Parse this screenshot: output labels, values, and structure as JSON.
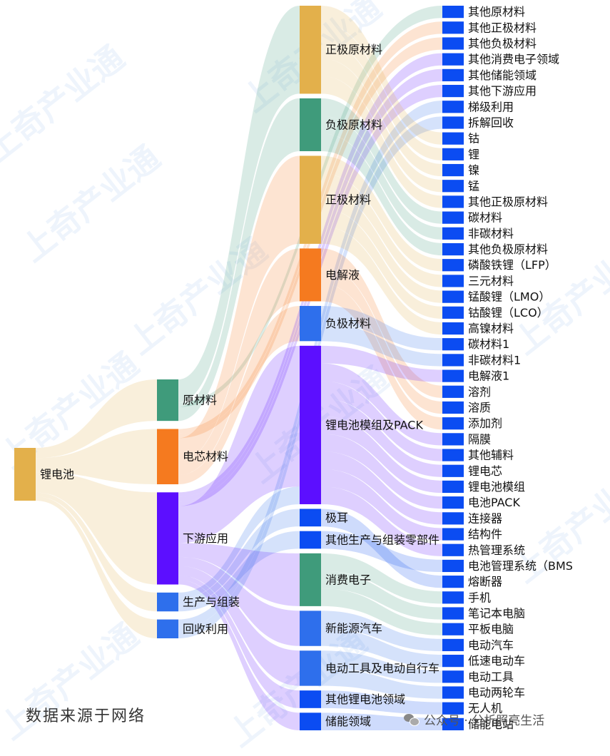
{
  "watermark": "上奇产业通",
  "source_note": "数据来源于网络",
  "wechat_account": "公众号 · 分析照亮生活",
  "colors": {
    "gold": "#e3b04b",
    "teal": "#3f9b7b",
    "orange": "#f57a1f",
    "violet": "#5c0fff",
    "blue": "#2e6fec",
    "bright_blue": "#0b4cf2"
  },
  "chart_data": {
    "type": "sankey",
    "nodes": [
      {
        "id": "锂电池",
        "color": "#e3b04b"
      },
      {
        "id": "原材料",
        "color": "#3f9b7b"
      },
      {
        "id": "电芯材料",
        "color": "#f57a1f"
      },
      {
        "id": "下游应用",
        "color": "#5c0fff"
      },
      {
        "id": "生产与组装",
        "color": "#2e6fec"
      },
      {
        "id": "回收利用",
        "color": "#2e6fec"
      },
      {
        "id": "正极原材料",
        "color": "#e3b04b"
      },
      {
        "id": "负极原材料",
        "color": "#3f9b7b"
      },
      {
        "id": "其他原材料",
        "color": "#0b4cf2"
      },
      {
        "id": "正极材料",
        "color": "#e3b04b"
      },
      {
        "id": "电解液",
        "color": "#f57a1f"
      },
      {
        "id": "负极材料",
        "color": "#2e6fec"
      },
      {
        "id": "锂电池模组及PACK",
        "color": "#5c0fff"
      },
      {
        "id": "其他正极材料",
        "color": "#0b4cf2"
      },
      {
        "id": "其他负极材料",
        "color": "#0b4cf2"
      },
      {
        "id": "极耳",
        "color": "#0b4cf2"
      },
      {
        "id": "其他生产与组装零部件",
        "color": "#0b4cf2"
      },
      {
        "id": "消费电子",
        "color": "#3f9b7b"
      },
      {
        "id": "其他消费电子领域",
        "color": "#0b4cf2"
      },
      {
        "id": "其他储能领域",
        "color": "#0b4cf2"
      },
      {
        "id": "其他下游应用",
        "color": "#0b4cf2"
      },
      {
        "id": "新能源汽车",
        "color": "#2e6fec"
      },
      {
        "id": "电动工具及电动自行车",
        "color": "#2e6fec"
      },
      {
        "id": "其他锂电池领域",
        "color": "#0b4cf2"
      },
      {
        "id": "储能领域",
        "color": "#0b4cf2"
      },
      {
        "id": "梯级利用",
        "color": "#0b4cf2"
      },
      {
        "id": "拆解回收",
        "color": "#0b4cf2"
      },
      {
        "id": "钴",
        "color": "#0b4cf2"
      },
      {
        "id": "锂",
        "color": "#0b4cf2"
      },
      {
        "id": "镍",
        "color": "#0b4cf2"
      },
      {
        "id": "锰",
        "color": "#0b4cf2"
      },
      {
        "id": "其他正极原材料",
        "color": "#0b4cf2"
      },
      {
        "id": "碳材料",
        "color": "#0b4cf2"
      },
      {
        "id": "非碳材料",
        "color": "#0b4cf2"
      },
      {
        "id": "其他负极原材料",
        "color": "#0b4cf2"
      },
      {
        "id": "磷酸铁锂（LFP）",
        "color": "#0b4cf2"
      },
      {
        "id": "三元材料",
        "color": "#0b4cf2"
      },
      {
        "id": "锰酸锂（LMO）",
        "color": "#0b4cf2"
      },
      {
        "id": "钴酸锂（LCO）",
        "color": "#0b4cf2"
      },
      {
        "id": "高镍材料",
        "color": "#0b4cf2"
      },
      {
        "id": "碳材料1",
        "color": "#0b4cf2"
      },
      {
        "id": "非碳材料1",
        "color": "#0b4cf2"
      },
      {
        "id": "电解液1",
        "color": "#0b4cf2"
      },
      {
        "id": "溶剂",
        "color": "#0b4cf2"
      },
      {
        "id": "溶质",
        "color": "#0b4cf2"
      },
      {
        "id": "添加剂",
        "color": "#0b4cf2"
      },
      {
        "id": "隔膜",
        "color": "#0b4cf2"
      },
      {
        "id": "其他辅料",
        "color": "#0b4cf2"
      },
      {
        "id": "锂电芯",
        "color": "#0b4cf2"
      },
      {
        "id": "锂电池模组",
        "color": "#0b4cf2"
      },
      {
        "id": "电池PACK",
        "color": "#0b4cf2"
      },
      {
        "id": "连接器",
        "color": "#0b4cf2"
      },
      {
        "id": "结构件",
        "color": "#0b4cf2"
      },
      {
        "id": "热管理系统",
        "color": "#0b4cf2"
      },
      {
        "id": "电池管理系统（BMS",
        "color": "#0b4cf2"
      },
      {
        "id": "熔断器",
        "color": "#0b4cf2"
      },
      {
        "id": "手机",
        "color": "#0b4cf2"
      },
      {
        "id": "笔记本电脑",
        "color": "#0b4cf2"
      },
      {
        "id": "平板电脑",
        "color": "#0b4cf2"
      },
      {
        "id": "电动汽车",
        "color": "#0b4cf2"
      },
      {
        "id": "低速电动车",
        "color": "#0b4cf2"
      },
      {
        "id": "电动工具",
        "color": "#0b4cf2"
      },
      {
        "id": "电动两轮车",
        "color": "#0b4cf2"
      },
      {
        "id": "无人机",
        "color": "#0b4cf2"
      },
      {
        "id": "储能电站",
        "color": "#0b4cf2"
      }
    ],
    "links": [
      {
        "source": "锂电池",
        "target": "原材料",
        "value": 5
      },
      {
        "source": "锂电池",
        "target": "电芯材料",
        "value": 7
      },
      {
        "source": "锂电池",
        "target": "下游应用",
        "value": 10
      },
      {
        "source": "锂电池",
        "target": "生产与组装",
        "value": 2
      },
      {
        "source": "锂电池",
        "target": "回收利用",
        "value": 2
      },
      {
        "source": "原材料",
        "target": "正极原材料",
        "value": 5
      },
      {
        "source": "原材料",
        "target": "负极原材料",
        "value": 3
      },
      {
        "source": "原材料",
        "target": "其他原材料",
        "value": 1
      },
      {
        "source": "电芯材料",
        "target": "正极材料",
        "value": 5
      },
      {
        "source": "电芯材料",
        "target": "电解液",
        "value": 3
      },
      {
        "source": "电芯材料",
        "target": "负极材料",
        "value": 2
      },
      {
        "source": "电芯材料",
        "target": "其他正极材料",
        "value": 1
      },
      {
        "source": "电芯材料",
        "target": "其他负极材料",
        "value": 1
      },
      {
        "source": "生产与组装",
        "target": "锂电池模组及PACK",
        "value": 1
      },
      {
        "source": "生产与组装",
        "target": "极耳",
        "value": 1
      },
      {
        "source": "生产与组装",
        "target": "其他生产与组装零部件",
        "value": 1
      },
      {
        "source": "下游应用",
        "target": "锂电池模组及PACK",
        "value": 8
      },
      {
        "source": "下游应用",
        "target": "消费电子",
        "value": 3
      },
      {
        "source": "下游应用",
        "target": "其他消费电子领域",
        "value": 1
      },
      {
        "source": "下游应用",
        "target": "其他储能领域",
        "value": 1
      },
      {
        "source": "下游应用",
        "target": "其他下游应用",
        "value": 1
      },
      {
        "source": "下游应用",
        "target": "新能源汽车",
        "value": 2
      },
      {
        "source": "下游应用",
        "target": "电动工具及电动自行车",
        "value": 2
      },
      {
        "source": "下游应用",
        "target": "其他锂电池领域",
        "value": 1
      },
      {
        "source": "下游应用",
        "target": "储能领域",
        "value": 1
      },
      {
        "source": "回收利用",
        "target": "梯级利用",
        "value": 1
      },
      {
        "source": "回收利用",
        "target": "拆解回收",
        "value": 1
      },
      {
        "source": "正极原材料",
        "target": "钴",
        "value": 1
      },
      {
        "source": "正极原材料",
        "target": "锂",
        "value": 1
      },
      {
        "source": "正极原材料",
        "target": "镍",
        "value": 1
      },
      {
        "source": "正极原材料",
        "target": "锰",
        "value": 1
      },
      {
        "source": "正极原材料",
        "target": "其他正极原材料",
        "value": 1
      },
      {
        "source": "负极原材料",
        "target": "碳材料",
        "value": 1
      },
      {
        "source": "负极原材料",
        "target": "非碳材料",
        "value": 1
      },
      {
        "source": "负极原材料",
        "target": "其他负极原材料",
        "value": 1
      },
      {
        "source": "正极材料",
        "target": "磷酸铁锂（LFP）",
        "value": 1
      },
      {
        "source": "正极材料",
        "target": "三元材料",
        "value": 1
      },
      {
        "source": "正极材料",
        "target": "锰酸锂（LMO）",
        "value": 1
      },
      {
        "source": "正极材料",
        "target": "钴酸锂（LCO）",
        "value": 1
      },
      {
        "source": "正极材料",
        "target": "高镍材料",
        "value": 1
      },
      {
        "source": "电解液",
        "target": "溶剂",
        "value": 1
      },
      {
        "source": "电解液",
        "target": "溶质",
        "value": 1
      },
      {
        "source": "电解液",
        "target": "添加剂",
        "value": 1
      },
      {
        "source": "负极材料",
        "target": "碳材料1",
        "value": 1
      },
      {
        "source": "负极材料",
        "target": "非碳材料1",
        "value": 1
      },
      {
        "source": "锂电池模组及PACK",
        "target": "电解液1",
        "value": 1
      },
      {
        "source": "锂电池模组及PACK",
        "target": "隔膜",
        "value": 1
      },
      {
        "source": "锂电池模组及PACK",
        "target": "其他辅料",
        "value": 1
      },
      {
        "source": "锂电池模组及PACK",
        "target": "锂电芯",
        "value": 1
      },
      {
        "source": "锂电池模组及PACK",
        "target": "锂电池模组",
        "value": 1
      },
      {
        "source": "锂电池模组及PACK",
        "target": "电池PACK",
        "value": 1
      },
      {
        "source": "锂电池模组及PACK",
        "target": "连接器",
        "value": 1
      },
      {
        "source": "锂电池模组及PACK",
        "target": "结构件",
        "value": 1
      },
      {
        "source": "锂电池模组及PACK",
        "target": "热管理系统",
        "value": 1
      },
      {
        "source": "消费电子",
        "target": "手机",
        "value": 1
      },
      {
        "source": "消费电子",
        "target": "笔记本电脑",
        "value": 1
      },
      {
        "source": "消费电子",
        "target": "平板电脑",
        "value": 1
      },
      {
        "source": "新能源汽车",
        "target": "电动汽车",
        "value": 1
      },
      {
        "source": "新能源汽车",
        "target": "低速电动车",
        "value": 1
      },
      {
        "source": "电动工具及电动自行车",
        "target": "电动工具",
        "value": 1
      },
      {
        "source": "电动工具及电动自行车",
        "target": "电动两轮车",
        "value": 1
      },
      {
        "source": "其他生产与组装零部件",
        "target": "电池管理系统（BMS",
        "value": 1
      },
      {
        "source": "极耳",
        "target": "熔断器",
        "value": 1
      },
      {
        "source": "其他锂电池领域",
        "target": "无人机",
        "value": 1
      },
      {
        "source": "储能领域",
        "target": "储能电站",
        "value": 1
      }
    ]
  }
}
